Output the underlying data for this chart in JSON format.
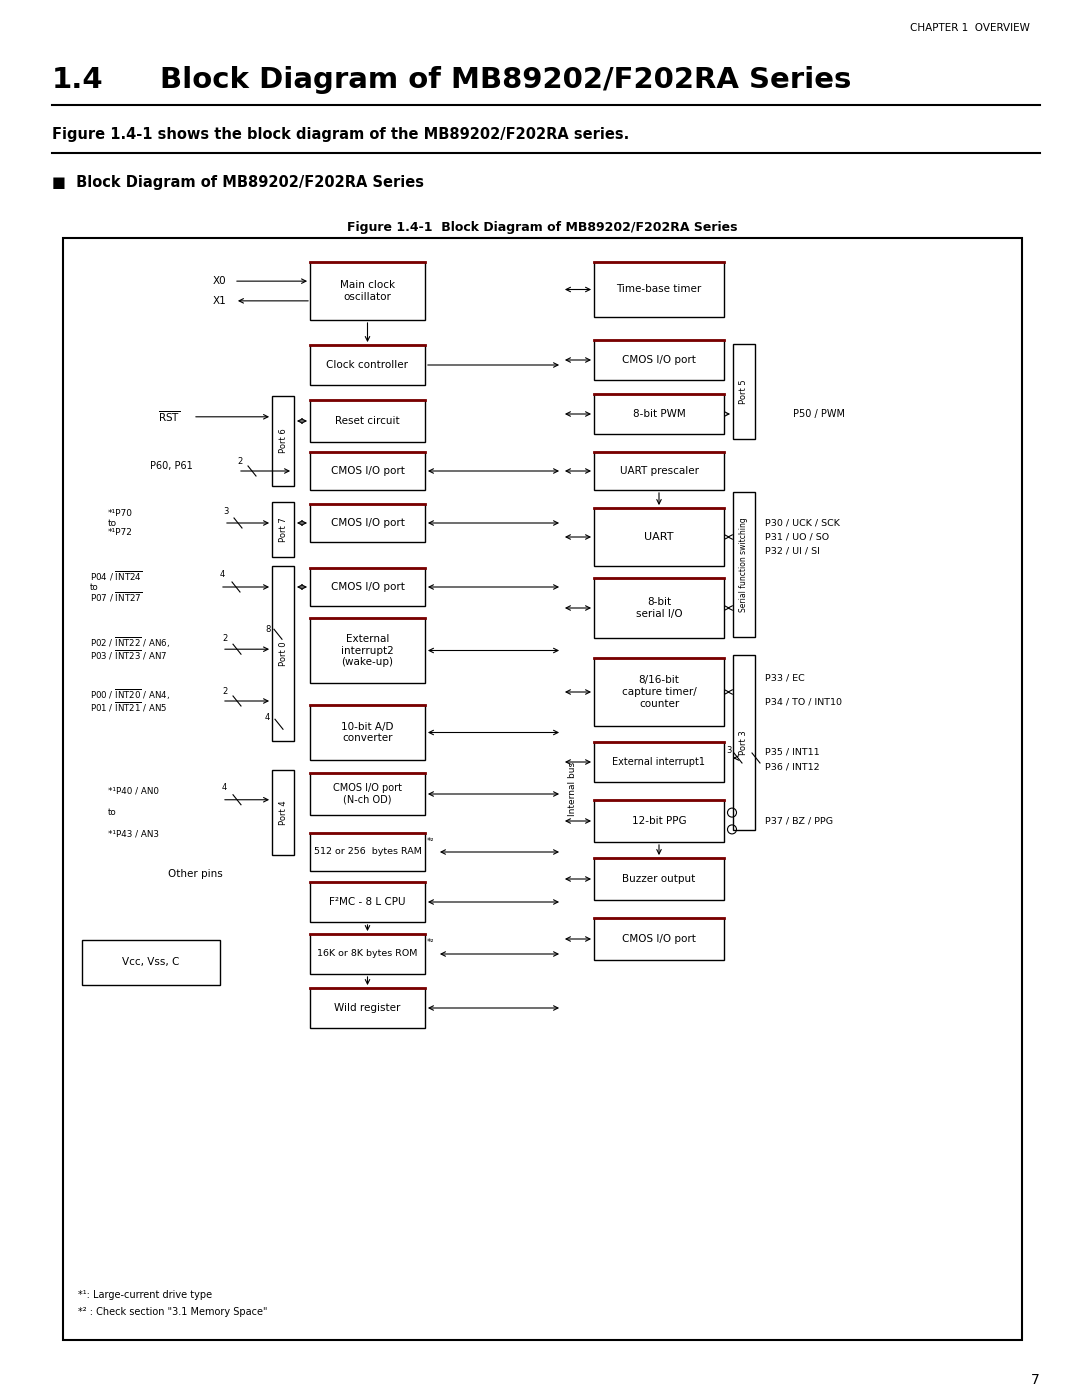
{
  "page_title": "CHAPTER 1  OVERVIEW",
  "section_number": "1.4",
  "section_title": "Block Diagram of MB89202/F202RA Series",
  "figure_caption": "Figure 1.4-1  Block Diagram of MB89202/F202RA Series",
  "intro_text": "Figure 1.4-1 shows the block diagram of the MB89202/F202RA series.",
  "subsection_title": "Block Diagram of MB89202/F202RA Series",
  "page_number": "7",
  "bg_color": "#ffffff",
  "dark_red": "#7a0000"
}
